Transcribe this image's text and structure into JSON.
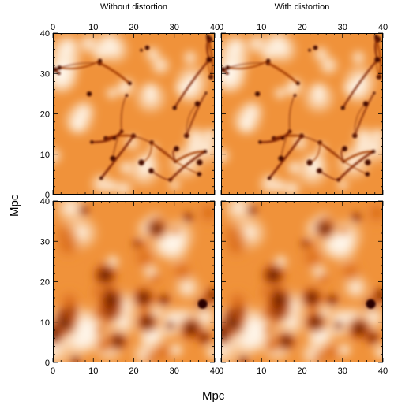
{
  "figure": {
    "titles": [
      "Without distortion",
      "With distortion"
    ],
    "xlabel": "Mpc",
    "ylabel": "Mpc",
    "tick_labels": [
      "0",
      "10",
      "20",
      "30",
      "40"
    ],
    "axis_range": [
      0,
      40
    ],
    "colors": {
      "low": "#fff3e6",
      "mid": "#f0923a",
      "high": "#3a0a00",
      "frame": "#000000"
    },
    "panels": [
      {
        "name": "panel-top-left",
        "kind": "filaments"
      },
      {
        "name": "panel-top-right",
        "kind": "filaments"
      },
      {
        "name": "panel-bottom-left",
        "kind": "smoothed"
      },
      {
        "name": "panel-bottom-right",
        "kind": "smoothed"
      }
    ]
  }
}
